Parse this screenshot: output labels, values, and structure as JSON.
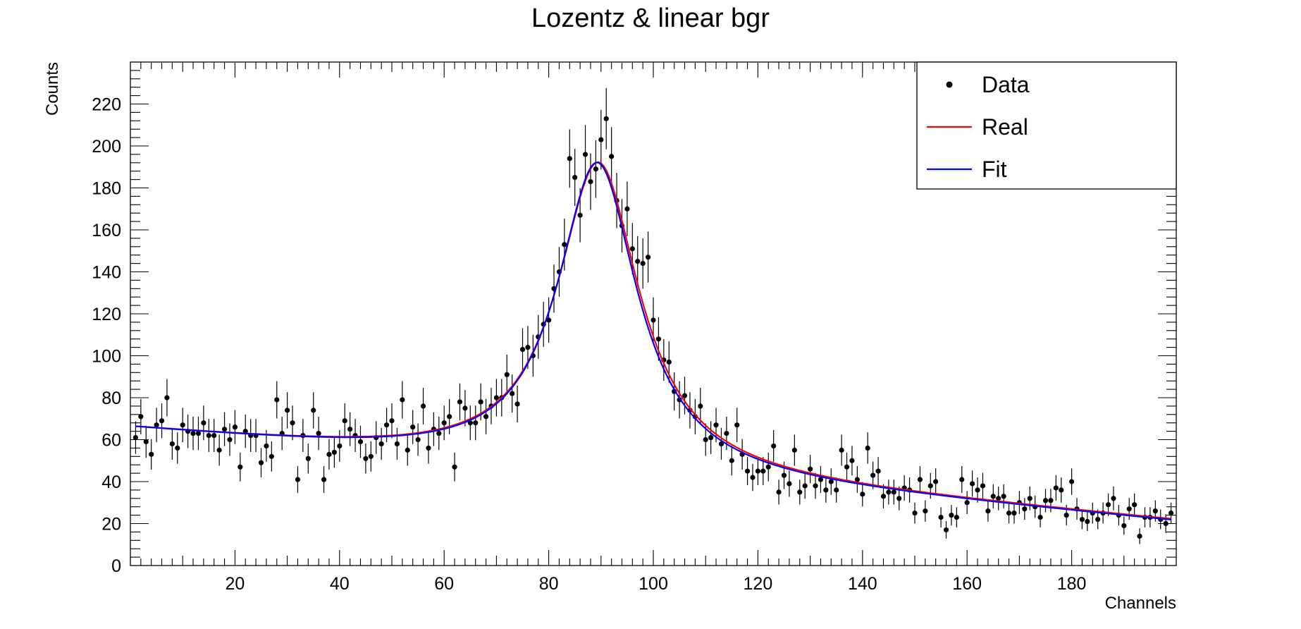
{
  "chart_data": {
    "type": "scatter",
    "title": "Lozentz & linear bgr",
    "xlabel": "Channels",
    "ylabel": "Counts",
    "xlim": [
      0,
      200
    ],
    "ylim": [
      0,
      240
    ],
    "x_ticks": [
      20,
      40,
      60,
      80,
      100,
      120,
      140,
      160,
      180
    ],
    "y_ticks": [
      0,
      20,
      40,
      60,
      80,
      100,
      120,
      140,
      160,
      180,
      200,
      220
    ],
    "legend": {
      "position": "top-right",
      "entries": [
        {
          "label": "Data",
          "symbol": "marker",
          "color": "#000000"
        },
        {
          "label": "Real",
          "symbol": "line",
          "color": "#ff0000"
        },
        {
          "label": "Fit",
          "symbol": "line",
          "color": "#0000ff"
        }
      ]
    },
    "series": [
      {
        "name": "Data",
        "kind": "points_with_errors",
        "color": "#000000",
        "x": [
          1,
          2,
          3,
          4,
          5,
          6,
          7,
          8,
          9,
          10,
          11,
          12,
          13,
          14,
          15,
          16,
          17,
          18,
          19,
          20,
          21,
          22,
          23,
          24,
          25,
          26,
          27,
          28,
          29,
          30,
          31,
          32,
          33,
          34,
          35,
          36,
          37,
          38,
          39,
          40,
          41,
          42,
          43,
          44,
          45,
          46,
          47,
          48,
          49,
          50,
          51,
          52,
          53,
          54,
          55,
          56,
          57,
          58,
          59,
          60,
          61,
          62,
          63,
          64,
          65,
          66,
          67,
          68,
          69,
          70,
          71,
          72,
          73,
          74,
          75,
          76,
          77,
          78,
          79,
          80,
          81,
          82,
          83,
          84,
          85,
          86,
          87,
          88,
          89,
          90,
          91,
          92,
          93,
          94,
          95,
          96,
          97,
          98,
          99,
          100,
          101,
          102,
          103,
          104,
          105,
          106,
          107,
          108,
          109,
          110,
          111,
          112,
          113,
          114,
          115,
          116,
          117,
          118,
          119,
          120,
          121,
          122,
          123,
          124,
          125,
          126,
          127,
          128,
          129,
          130,
          131,
          132,
          133,
          134,
          135,
          136,
          137,
          138,
          139,
          140,
          141,
          142,
          143,
          144,
          145,
          146,
          147,
          148,
          149,
          150,
          151,
          152,
          153,
          154,
          155,
          156,
          157,
          158,
          159,
          160,
          161,
          162,
          163,
          164,
          165,
          166,
          167,
          168,
          169,
          170,
          171,
          172,
          173,
          174,
          175,
          176,
          177,
          178,
          179,
          180,
          181,
          182,
          183,
          184,
          185,
          186,
          187,
          188,
          189,
          190,
          191,
          192,
          193,
          194,
          195,
          196,
          197,
          198,
          199
        ],
        "y": [
          61,
          71,
          59,
          53,
          67,
          69,
          80,
          58,
          56,
          67,
          64,
          63,
          63,
          68,
          62,
          62,
          55,
          65,
          60,
          66,
          47,
          64,
          62,
          62,
          49,
          57,
          52,
          79,
          63,
          74,
          68,
          41,
          62,
          51,
          74,
          63,
          41,
          53,
          54,
          57,
          69,
          65,
          62,
          59,
          51,
          52,
          61,
          58,
          67,
          69,
          58,
          79,
          55,
          66,
          60,
          76,
          56,
          65,
          63,
          68,
          71,
          47,
          78,
          75,
          68,
          68,
          78,
          71,
          76,
          80,
          80,
          91,
          82,
          77,
          103,
          104,
          100,
          109,
          115,
          117,
          132,
          140,
          153,
          194,
          185,
          167,
          196,
          183,
          189,
          203,
          213,
          195,
          174,
          162,
          170,
          151,
          145,
          144,
          147,
          117,
          108,
          98,
          97,
          83,
          79,
          81,
          74,
          71,
          76,
          60,
          61,
          67,
          58,
          63,
          50,
          67,
          53,
          45,
          42,
          45,
          45,
          47,
          57,
          35,
          43,
          39,
          55,
          35,
          38,
          46,
          38,
          41,
          36,
          40,
          36,
          55,
          47,
          50,
          41,
          34,
          56,
          43,
          45,
          33,
          35,
          35,
          32,
          37,
          36,
          25,
          41,
          26,
          38,
          40,
          23,
          17,
          24,
          23,
          41,
          30,
          39,
          36,
          38,
          26,
          33,
          32,
          33,
          25,
          25,
          30,
          27,
          32,
          28,
          23,
          31,
          31,
          37,
          36,
          24,
          40,
          27,
          22,
          21,
          25,
          22,
          25,
          29,
          32,
          24,
          19,
          27,
          29,
          14,
          23,
          23,
          26,
          22,
          20,
          25
        ]
      },
      {
        "name": "Real",
        "kind": "curve",
        "color": "#ff0000",
        "model": "lorentzian_plus_linear",
        "params": {
          "amplitude": 147,
          "mean": 89.5,
          "gamma": 9.5,
          "bg_intercept": 65,
          "bg_slope": -0.22
        }
      },
      {
        "name": "Fit",
        "kind": "curve",
        "color": "#0000ff",
        "model": "lorentzian_plus_linear",
        "params": {
          "amplitude": 147,
          "mean": 89.3,
          "gamma": 9.3,
          "bg_intercept": 65,
          "bg_slope": -0.222
        }
      }
    ]
  }
}
